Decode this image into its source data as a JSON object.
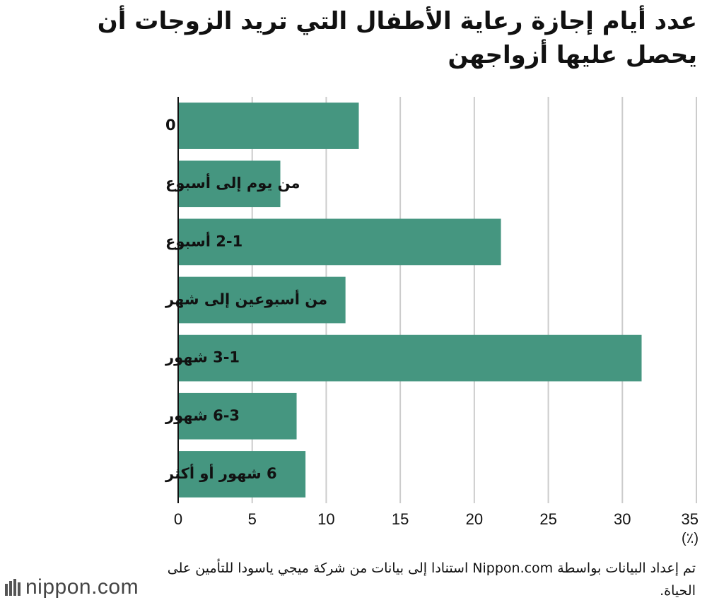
{
  "chart_data": {
    "type": "bar",
    "orientation": "horizontal",
    "title": "عدد أيام إجازة رعاية الأطفال التي تريد الزوجات أن يحصل عليها أزواجهن",
    "categories": [
      "0",
      "من يوم إلى أسبوع",
      "2-1 أسبوع",
      "من أسبوعين إلى شهر",
      "3-1 شهور",
      "6-3 شهور",
      "6 شهور أو أكثر"
    ],
    "values": [
      12.2,
      6.9,
      21.8,
      11.3,
      31.3,
      8.0,
      8.6
    ],
    "xlim": [
      0,
      35
    ],
    "xticks": [
      0,
      5,
      10,
      15,
      20,
      25,
      30,
      35
    ],
    "unit": "(٪)",
    "grid": true,
    "bar_color": "#459680",
    "grid_color": "#cccccc"
  },
  "source": "تم إعداد البيانات بواسطة Nippon.com استنادا إلى بيانات من شركة ميجي ياسودا للتأمين على الحياة.",
  "logo": {
    "text": "nippon.com",
    "icon": "nippon-logo-icon"
  }
}
